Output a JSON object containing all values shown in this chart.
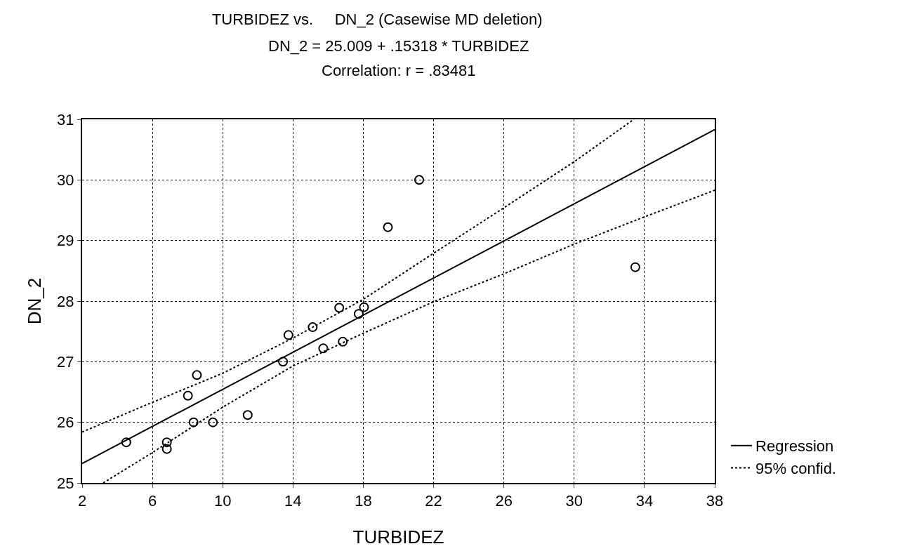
{
  "chart_data": {
    "type": "scatter",
    "title": "TURBIDEZ vs.     DN_2 (Casewise MD deletion)",
    "annotations": [
      "DN_2 = 25.009 + .15318 * TURBIDEZ",
      "Correlation: r = .83481"
    ],
    "xlabel": "TURBIDEZ",
    "ylabel": "DN_2",
    "xlim": [
      2,
      38
    ],
    "xticks": [
      2,
      6,
      10,
      14,
      18,
      22,
      26,
      30,
      34,
      38
    ],
    "ylim": [
      25,
      31
    ],
    "yticks": [
      25,
      26,
      27,
      28,
      29,
      30,
      31
    ],
    "grid": true,
    "legend": "bottom right",
    "series": [
      {
        "marker": "circle",
        "color": "#000000",
        "x": [
          4.51,
          6.82,
          6.82,
          8.02,
          8.53,
          8.34,
          9.44,
          11.42,
          13.43,
          13.74,
          15.12,
          15.72,
          16.63,
          16.83,
          17.74,
          18.04,
          19.4,
          21.18,
          33.48
        ],
        "values": [
          25.67,
          25.67,
          25.56,
          26.44,
          26.78,
          26.0,
          26.0,
          26.12,
          27.0,
          27.44,
          27.57,
          27.22,
          27.89,
          27.33,
          27.79,
          27.9,
          29.22,
          30.0,
          28.56
        ]
      },
      {
        "type": "line",
        "name": "Regression",
        "marker": "none",
        "line_style": "solid",
        "color": "#000000",
        "x": [
          2,
          38
        ],
        "values": [
          25.32,
          30.83
        ]
      },
      {
        "type": "line",
        "name": "95% confid.",
        "marker": "none",
        "line_style": "dotted",
        "color": "#000000",
        "x": [
          2,
          6,
          10,
          14,
          18,
          22,
          26,
          30,
          33.4
        ],
        "values": [
          25.84,
          26.33,
          26.81,
          27.39,
          28.03,
          28.79,
          29.54,
          30.3,
          31.0
        ]
      },
      {
        "type": "line",
        "marker": "none",
        "line_style": "dotted",
        "color": "#000000",
        "x": [
          3.2,
          6,
          10,
          14,
          18,
          22,
          26,
          30,
          34,
          38
        ],
        "values": [
          25.0,
          25.5,
          26.25,
          26.93,
          27.47,
          27.99,
          28.45,
          28.94,
          29.39,
          29.83
        ]
      }
    ]
  }
}
